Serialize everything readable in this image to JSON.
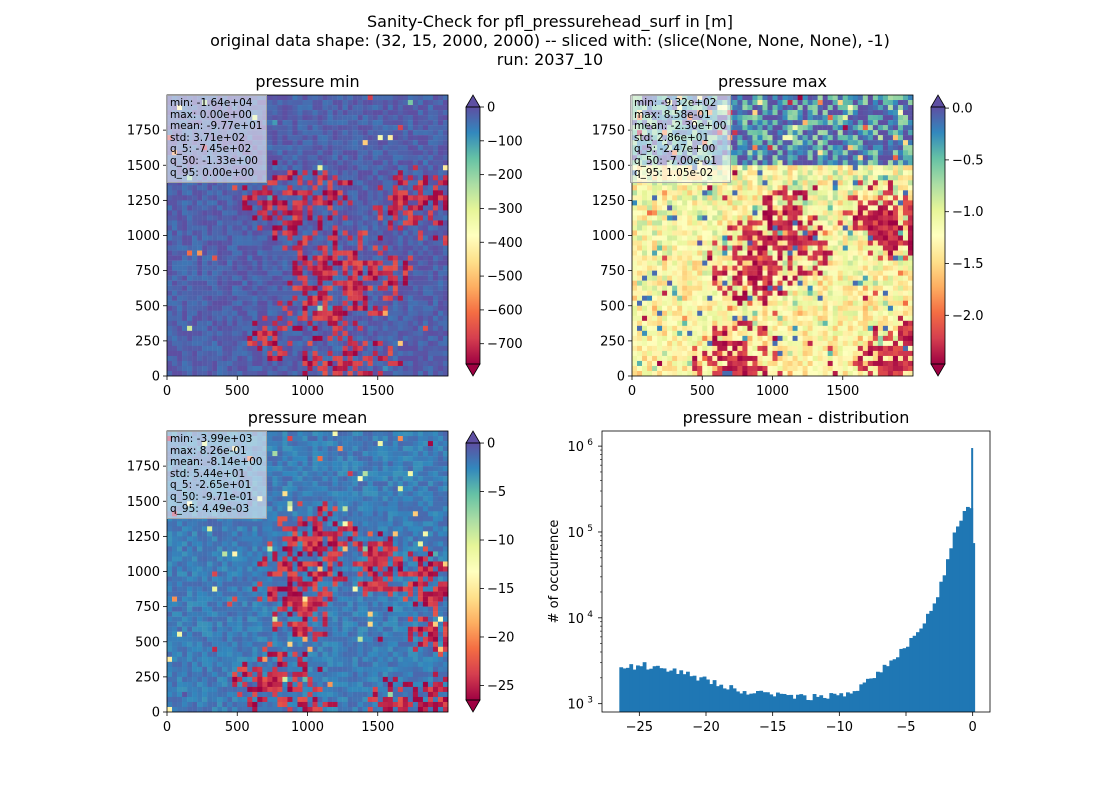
{
  "suptitle": {
    "line1": "Sanity-Check for pfl_pressurehead_surf in [m]",
    "line2": "original data shape: (32, 15, 2000, 2000) -- sliced with: (slice(None, None, None), -1)",
    "line3": "run: 2037_10"
  },
  "colors": {
    "spectral": [
      "#9e0142",
      "#d53e4f",
      "#f46d43",
      "#fdae61",
      "#fee08b",
      "#ffffbf",
      "#e6f598",
      "#abdda4",
      "#66c2a5",
      "#3288bd",
      "#5e4fa2"
    ],
    "histogram_bar": "#1f77b4"
  },
  "maps": [
    {
      "title": "pressure min",
      "stats": [
        "min: -1.64e+04",
        "max: 0.00e+00",
        "mean: -9.77e+01",
        "std: 3.71e+02",
        "q_5: -7.45e+02",
        "q_50: -1.33e+00",
        "q_95: 0.00e+00"
      ],
      "x_ticks": [
        "0",
        "500",
        "1000",
        "1500"
      ],
      "y_ticks": [
        "0",
        "250",
        "500",
        "750",
        "1000",
        "1250",
        "1500",
        "1750"
      ],
      "colorbar": {
        "vmin": -760,
        "vmax": 0,
        "ticks": [
          0,
          -100,
          -200,
          -300,
          -400,
          -500,
          -600,
          -700
        ],
        "tick_labels": [
          "0",
          "−100",
          "−200",
          "−300",
          "−400",
          "−500",
          "−600",
          "−700"
        ]
      }
    },
    {
      "title": "pressure max",
      "stats": [
        "min: -9.32e+02",
        "max: 8.58e-01",
        "mean: -2.30e+00",
        "std: 2.86e+01",
        "q_5: -2.47e+00",
        "q_50: -7.00e-01",
        "q_95: 1.05e-02"
      ],
      "x_ticks": [
        "0",
        "500",
        "1000",
        "1500"
      ],
      "y_ticks": [
        "0",
        "250",
        "500",
        "750",
        "1000",
        "1250",
        "1500",
        "1750"
      ],
      "colorbar": {
        "vmin": -2.47,
        "vmax": 0.0105,
        "ticks": [
          0.0,
          -0.5,
          -1.0,
          -1.5,
          -2.0
        ],
        "tick_labels": [
          "0.0",
          "−0.5",
          "−1.0",
          "−1.5",
          "−2.0"
        ]
      }
    },
    {
      "title": "pressure mean",
      "stats": [
        "min: -3.99e+03",
        "max: 8.26e-01",
        "mean: -8.14e+00",
        "std: 5.44e+01",
        "q_5: -2.65e+01",
        "q_50: -9.71e-01",
        "q_95: 4.49e-03"
      ],
      "x_ticks": [
        "0",
        "500",
        "1000",
        "1500"
      ],
      "y_ticks": [
        "0",
        "250",
        "500",
        "750",
        "1000",
        "1250",
        "1500",
        "1750"
      ],
      "colorbar": {
        "vmin": -26.5,
        "vmax": 0.0045,
        "ticks": [
          0,
          -5,
          -10,
          -15,
          -20,
          -25
        ],
        "tick_labels": [
          "0",
          "−5",
          "−10",
          "−15",
          "−20",
          "−25"
        ]
      }
    }
  ],
  "chart_data": {
    "type": "bar",
    "title": "pressure mean - distribution",
    "xlabel": "",
    "ylabel": "# of occurrence",
    "yscale": "log",
    "xlim": [
      -27.8,
      1.3
    ],
    "ylim": [
      800,
      1500000
    ],
    "x_ticks": [
      -25,
      -20,
      -15,
      -10,
      -5,
      0
    ],
    "x_tick_labels": [
      "−25",
      "−20",
      "−15",
      "−10",
      "−5",
      "0"
    ],
    "y_ticks": [
      1000,
      10000,
      100000,
      1000000
    ],
    "y_tick_labels": [
      "10^3",
      "10^4",
      "10^5",
      "10^6"
    ],
    "bin_width": 0.2625,
    "bins": [
      [
        -26.5,
        2700
      ],
      [
        -25.0,
        2800
      ],
      [
        -24.0,
        2700
      ],
      [
        -23.0,
        2450
      ],
      [
        -22.0,
        2300
      ],
      [
        -21.0,
        2100
      ],
      [
        -20.0,
        1850
      ],
      [
        -19.0,
        1650
      ],
      [
        -18.0,
        1500
      ],
      [
        -17.0,
        1400
      ],
      [
        -16.0,
        1330
      ],
      [
        -15.0,
        1300
      ],
      [
        -14.0,
        1260
      ],
      [
        -13.0,
        1220
      ],
      [
        -12.0,
        1200
      ],
      [
        -11.0,
        1200
      ],
      [
        -10.0,
        1250
      ],
      [
        -9.0,
        1400
      ],
      [
        -8.0,
        1800
      ],
      [
        -7.0,
        2400
      ],
      [
        -6.0,
        3200
      ],
      [
        -5.0,
        5000
      ],
      [
        -4.0,
        8000
      ],
      [
        -3.0,
        14000
      ],
      [
        -2.5,
        25000
      ],
      [
        -2.0,
        45000
      ],
      [
        -1.5,
        90000
      ],
      [
        -1.0,
        150000
      ],
      [
        -0.5,
        200000
      ],
      [
        -0.25,
        180000
      ],
      [
        -0.1,
        70000
      ],
      [
        0.0,
        950000
      ]
    ]
  }
}
